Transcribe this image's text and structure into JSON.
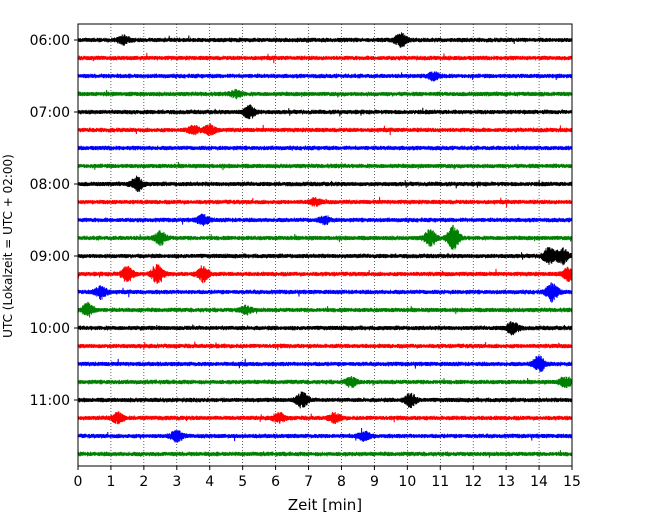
{
  "chart_data": {
    "type": "line",
    "subtype": "helicorder",
    "title": "",
    "xlabel": "Zeit  [min]",
    "ylabel": "UTC (Lokalzeit = UTC + 02:00)",
    "xlim": [
      0,
      15
    ],
    "x_ticks": [
      0,
      1,
      2,
      3,
      4,
      5,
      6,
      7,
      8,
      9,
      10,
      11,
      12,
      13,
      14,
      15
    ],
    "y_tick_labels": [
      "06:00",
      "07:00",
      "08:00",
      "09:00",
      "10:00",
      "11:00"
    ],
    "y_tick_rows": [
      0,
      4,
      8,
      12,
      16,
      20
    ],
    "grid": "vertical dotted at every minute",
    "row_minutes": 15,
    "row_colors": [
      "#000000",
      "#ff0000",
      "#0000ff",
      "#008000"
    ],
    "colors": {
      "black": "#000000",
      "red": "#ff0000",
      "blue": "#0000ff",
      "green": "#008000"
    },
    "rows": [
      {
        "start": "06:00",
        "color": "#000000",
        "events": [
          {
            "t": 1.4,
            "amp": 1.5
          },
          {
            "t": 9.8,
            "amp": 2.5
          }
        ]
      },
      {
        "start": "06:15",
        "color": "#ff0000",
        "events": []
      },
      {
        "start": "06:30",
        "color": "#0000ff",
        "events": [
          {
            "t": 10.8,
            "amp": 1.5
          }
        ]
      },
      {
        "start": "06:45",
        "color": "#008000",
        "events": [
          {
            "t": 4.8,
            "amp": 1.3
          }
        ]
      },
      {
        "start": "07:00",
        "color": "#000000",
        "events": [
          {
            "t": 5.2,
            "amp": 2.5
          }
        ]
      },
      {
        "start": "07:15",
        "color": "#ff0000",
        "events": [
          {
            "t": 3.5,
            "amp": 1.5
          },
          {
            "t": 4.0,
            "amp": 1.8
          }
        ]
      },
      {
        "start": "07:30",
        "color": "#0000ff",
        "events": []
      },
      {
        "start": "07:45",
        "color": "#008000",
        "events": []
      },
      {
        "start": "08:00",
        "color": "#000000",
        "events": [
          {
            "t": 1.8,
            "amp": 2.6
          }
        ]
      },
      {
        "start": "08:15",
        "color": "#ff0000",
        "events": [
          {
            "t": 7.2,
            "amp": 1.2
          }
        ]
      },
      {
        "start": "08:30",
        "color": "#0000ff",
        "events": [
          {
            "t": 3.8,
            "amp": 2
          },
          {
            "t": 7.5,
            "amp": 1.3
          }
        ]
      },
      {
        "start": "08:45",
        "color": "#008000",
        "events": [
          {
            "t": 2.5,
            "amp": 2.5
          },
          {
            "t": 10.7,
            "amp": 3
          },
          {
            "t": 11.4,
            "amp": 4.5
          }
        ]
      },
      {
        "start": "09:00",
        "color": "#000000",
        "events": [
          {
            "t": 14.3,
            "amp": 3
          },
          {
            "t": 14.7,
            "amp": 3
          }
        ]
      },
      {
        "start": "09:15",
        "color": "#ff0000",
        "events": [
          {
            "t": 1.5,
            "amp": 3
          },
          {
            "t": 2.4,
            "amp": 3.5
          },
          {
            "t": 3.8,
            "amp": 3
          },
          {
            "t": 14.9,
            "amp": 2.5
          }
        ]
      },
      {
        "start": "09:30",
        "color": "#0000ff",
        "events": [
          {
            "t": 0.7,
            "amp": 2.5
          },
          {
            "t": 14.4,
            "amp": 3.5
          }
        ]
      },
      {
        "start": "09:45",
        "color": "#008000",
        "events": [
          {
            "t": 0.3,
            "amp": 2.5
          },
          {
            "t": 5.1,
            "amp": 1.5
          }
        ]
      },
      {
        "start": "10:00",
        "color": "#000000",
        "events": [
          {
            "t": 13.2,
            "amp": 2.5
          }
        ]
      },
      {
        "start": "10:15",
        "color": "#ff0000",
        "events": []
      },
      {
        "start": "10:30",
        "color": "#0000ff",
        "events": [
          {
            "t": 14.0,
            "amp": 3
          }
        ]
      },
      {
        "start": "10:45",
        "color": "#008000",
        "events": [
          {
            "t": 8.3,
            "amp": 1.8
          },
          {
            "t": 14.8,
            "amp": 2
          }
        ]
      },
      {
        "start": "11:00",
        "color": "#000000",
        "events": [
          {
            "t": 6.8,
            "amp": 3
          },
          {
            "t": 10.1,
            "amp": 2.5
          }
        ]
      },
      {
        "start": "11:15",
        "color": "#ff0000",
        "events": [
          {
            "t": 1.2,
            "amp": 2
          },
          {
            "t": 6.1,
            "amp": 1.8
          },
          {
            "t": 7.8,
            "amp": 1.6
          }
        ]
      },
      {
        "start": "11:30",
        "color": "#0000ff",
        "events": [
          {
            "t": 3.0,
            "amp": 2
          },
          {
            "t": 8.7,
            "amp": 1.5
          }
        ]
      },
      {
        "start": "11:45",
        "color": "#008000",
        "events": []
      }
    ]
  }
}
